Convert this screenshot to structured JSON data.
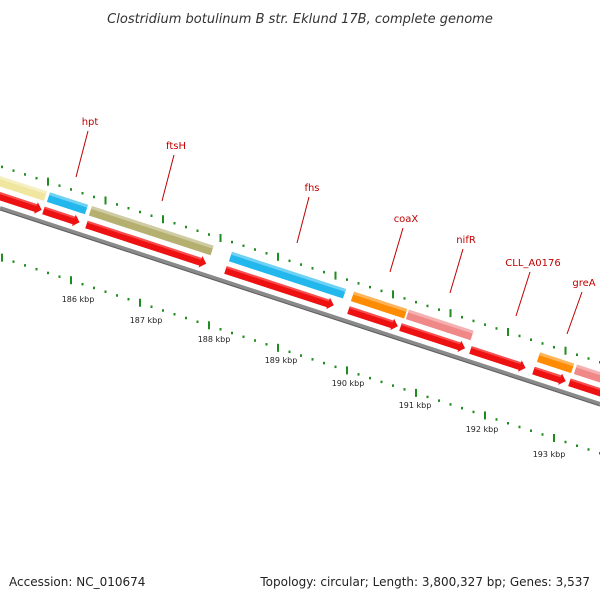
{
  "title": "Clostridium botulinum B str. Eklund 17B, complete genome",
  "footer": {
    "accession": "Accession: NC_010674",
    "summary": "Topology: circular; Length: 3,800,327 bp; Genes: 3,537"
  },
  "colors": {
    "backbone": "#8a8a8a",
    "tick": "#1e8c1e",
    "label": "#c00000",
    "label_line": "#c00000",
    "cds_red": "#ee1111",
    "yellow": "#f0e6a0",
    "blue": "#22b8ee",
    "olive": "#b5b070",
    "orange": "#ff8c00",
    "pink": "#f08888"
  },
  "kbp_labels": [
    "186 kbp",
    "187 kbp",
    "188 kbp",
    "189 kbp",
    "190 kbp",
    "191 kbp",
    "192 kbp",
    "193 kbp"
  ],
  "genes": [
    {
      "name": "",
      "color": "yellow"
    },
    {
      "name": "hpt",
      "color": "blue"
    },
    {
      "name": "ftsH",
      "color": "olive"
    },
    {
      "name": "fhs",
      "color": "blue"
    },
    {
      "name": "coaX",
      "color": "orange"
    },
    {
      "name": "nifR",
      "color": "pink"
    },
    {
      "name": "CLL_A0176",
      "color": ""
    },
    {
      "name": "greA",
      "color": "orange"
    },
    {
      "name": "",
      "color": "pink"
    }
  ]
}
